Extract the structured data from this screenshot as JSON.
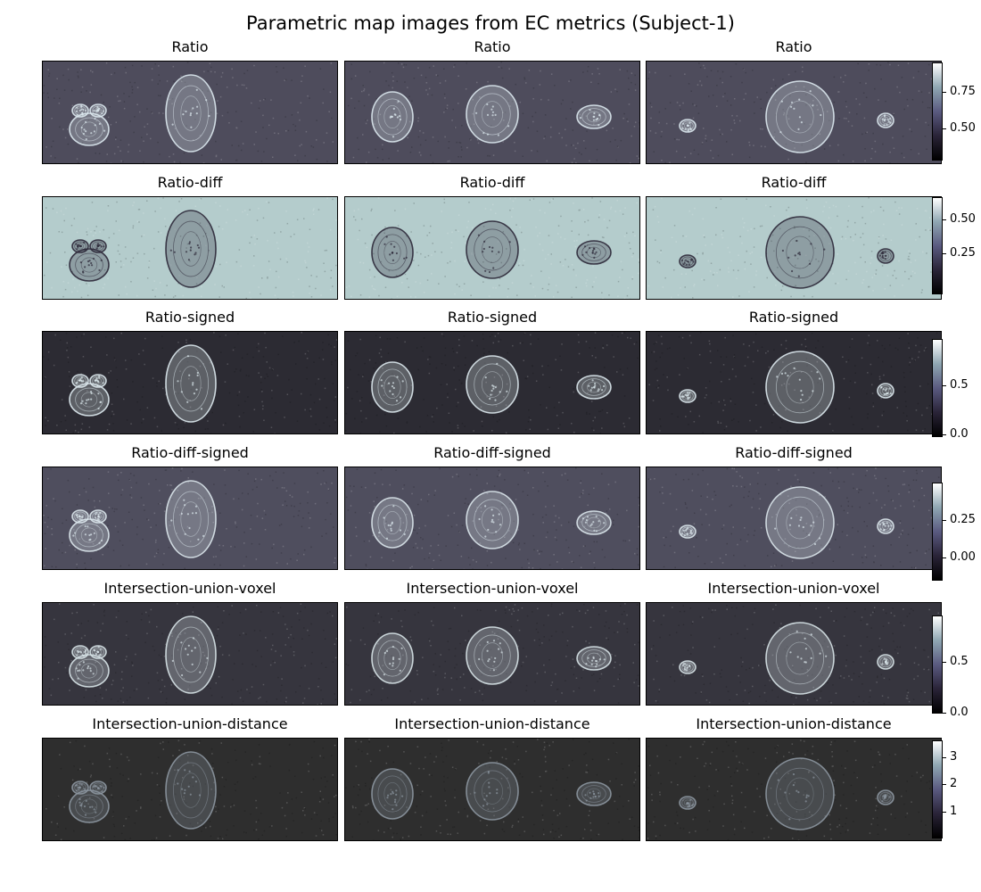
{
  "title": "Parametric map images from EC metrics (Subject-1)",
  "colormap": [
    "#000000",
    "#2a2438",
    "#5a5a80",
    "#8fa6b2",
    "#ffffff"
  ],
  "rows": [
    {
      "label": "Ratio",
      "background": "#4e4c5c",
      "tissue": "#dce8ee",
      "colorbar_ticks": [
        "0.75",
        "0.50"
      ]
    },
    {
      "label": "Ratio-diff",
      "background": "#b4cccc",
      "tissue": "#2c2838",
      "colorbar_ticks": [
        "0.50",
        "0.25"
      ]
    },
    {
      "label": "Ratio-signed",
      "background": "#2c2b33",
      "tissue": "#dde9ee",
      "colorbar_ticks": [
        "0.5",
        "0.0"
      ]
    },
    {
      "label": "Ratio-diff-signed",
      "background": "#4f4e5e",
      "tissue": "#dbe7ec",
      "colorbar_ticks": [
        "0.25",
        "0.00"
      ]
    },
    {
      "label": "Intersection-union-voxel",
      "background": "#36353e",
      "tissue": "#d8e4e8",
      "colorbar_ticks": [
        "0.5",
        "0.0"
      ]
    },
    {
      "label": "Intersection-union-distance",
      "background": "#2e2e2e",
      "tissue": "#8c96a0",
      "colorbar_ticks": [
        "3",
        "2",
        "1"
      ]
    }
  ]
}
